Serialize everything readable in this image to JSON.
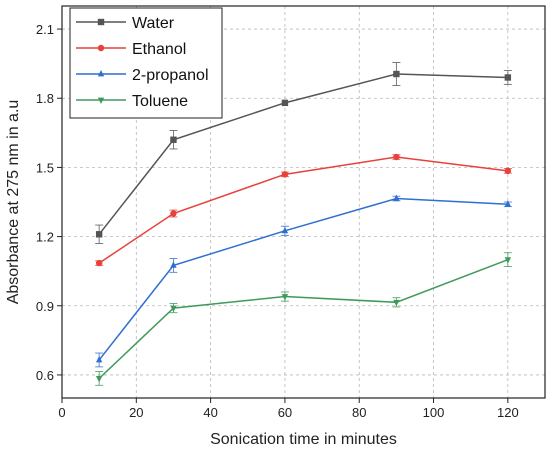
{
  "chart_data": {
    "type": "line",
    "title": "",
    "xlabel": "Sonication time in minutes",
    "ylabel": "Absorbance at 275 nm in a.u",
    "xlim": [
      0,
      130
    ],
    "ylim": [
      0.5,
      2.2
    ],
    "xticks": [
      "0",
      "20",
      "40",
      "60",
      "80",
      "100",
      "120"
    ],
    "yticks": [
      "0.6",
      "0.9",
      "1.2",
      "1.5",
      "1.8",
      "2.1"
    ],
    "grid": true,
    "legend_position": "top-left",
    "x": [
      10,
      30,
      60,
      90,
      120
    ],
    "series": [
      {
        "name": "Water",
        "color": "#555555",
        "marker": "square",
        "values": [
          1.21,
          1.62,
          1.78,
          1.905,
          1.89
        ],
        "errors": [
          0.04,
          0.04,
          0.0,
          0.05,
          0.03
        ]
      },
      {
        "name": "Ethanol",
        "color": "#e8403a",
        "marker": "circle",
        "values": [
          1.085,
          1.3,
          1.47,
          1.545,
          1.485
        ],
        "errors": [
          0.01,
          0.015,
          0.01,
          0.01,
          0.01
        ]
      },
      {
        "name": "2-propanol",
        "color": "#2f6fd0",
        "marker": "triangle-up",
        "values": [
          0.665,
          1.075,
          1.225,
          1.365,
          1.34
        ],
        "errors": [
          0.03,
          0.03,
          0.02,
          0.01,
          0.01
        ]
      },
      {
        "name": "Toluene",
        "color": "#3f9a5a",
        "marker": "triangle-down",
        "values": [
          0.585,
          0.89,
          0.94,
          0.915,
          1.1
        ],
        "errors": [
          0.03,
          0.02,
          0.02,
          0.02,
          0.03
        ]
      }
    ]
  }
}
